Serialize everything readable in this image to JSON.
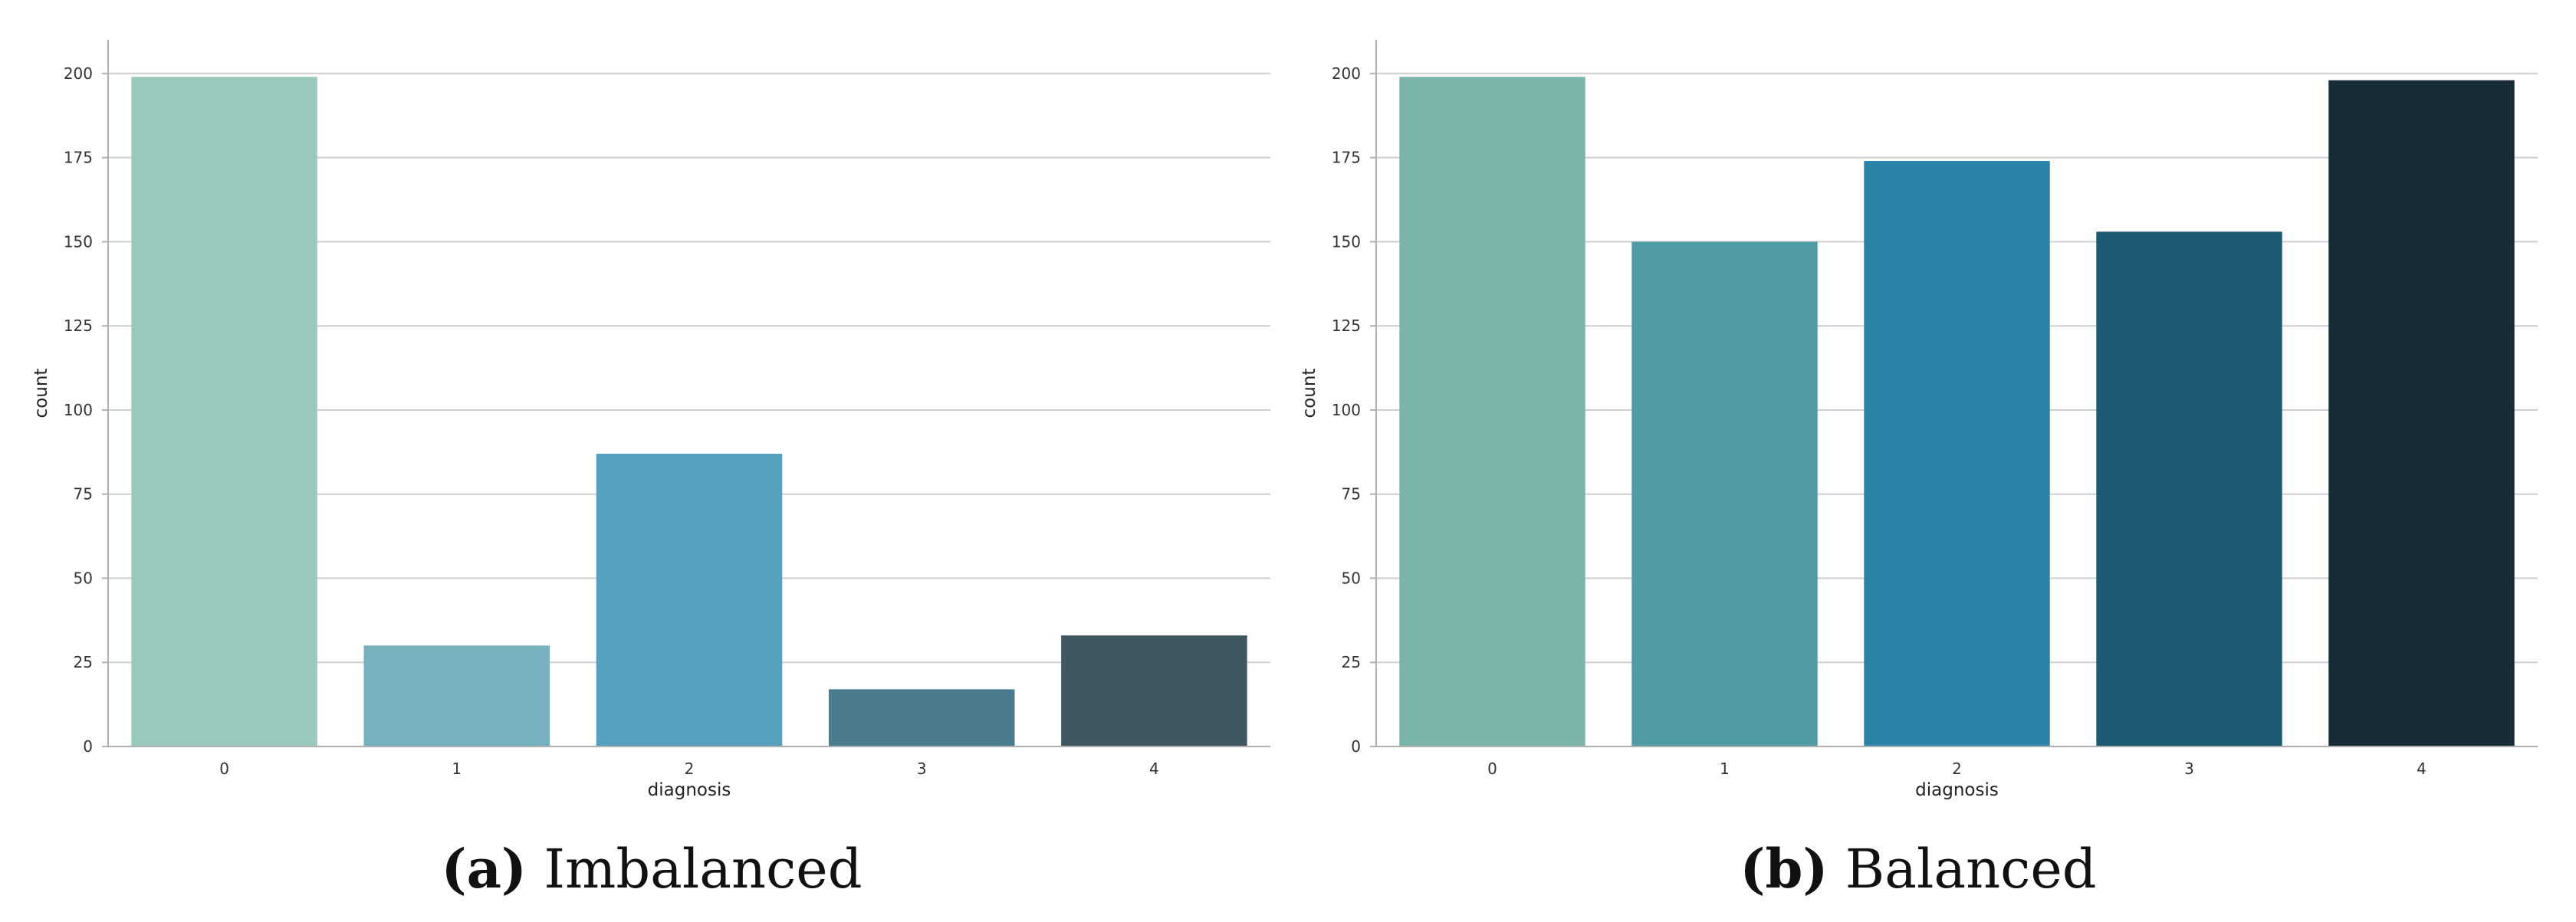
{
  "chart_data": [
    {
      "type": "bar",
      "panel_label": "(a)",
      "caption": "Imbalanced",
      "categories": [
        "0",
        "1",
        "2",
        "3",
        "4"
      ],
      "values": [
        199,
        30,
        87,
        17,
        33
      ],
      "xlabel": "diagnosis",
      "ylabel": "count",
      "ylim": [
        0,
        210
      ],
      "yticks": [
        0,
        25,
        50,
        75,
        100,
        125,
        150,
        175,
        200
      ],
      "grid": "horizontal",
      "colors": [
        "#99c8bd",
        "#76b1bd",
        "#54a0be",
        "#4b7b8f",
        "#40575f"
      ]
    },
    {
      "type": "bar",
      "panel_label": "(b)",
      "caption": "Balanced",
      "categories": [
        "0",
        "1",
        "2",
        "3",
        "4"
      ],
      "values": [
        199,
        150,
        174,
        153,
        198
      ],
      "xlabel": "diagnosis",
      "ylabel": "count",
      "ylim": [
        0,
        210
      ],
      "yticks": [
        0,
        25,
        50,
        75,
        100,
        125,
        150,
        175,
        200
      ],
      "grid": "horizontal",
      "colors": [
        "#7ab4aa",
        "#4f9ca6",
        "#2a83a6",
        "#1f5a75",
        "#172c37"
      ]
    }
  ]
}
